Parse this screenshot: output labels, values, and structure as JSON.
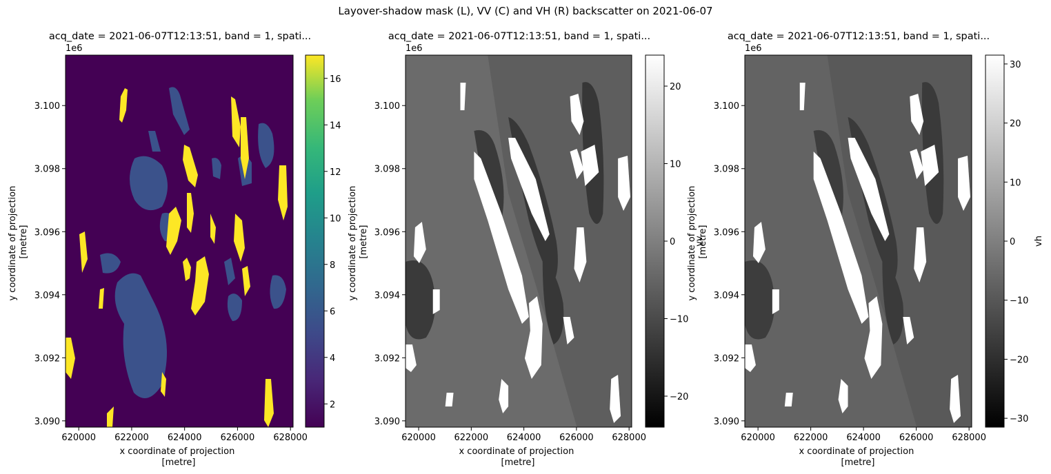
{
  "suptitle": "Layover-shadow mask (L), VV (C) and VH (R) backscatter on 2021-06-07",
  "colors": {
    "viridis_low": "#440154",
    "viridis_mid": "#3b528b",
    "viridis_high": "#fde725",
    "gray_low": "#000000",
    "gray_high": "#ffffff",
    "nodata": "#ffffff"
  },
  "chart_data": [
    {
      "type": "heatmap",
      "title": "acq_date = 2021-06-07T12:13:51, band = 1, spati...",
      "xlabel": "x coordinate of projection\n[metre]",
      "ylabel": "y coordinate of projection\n[metre]",
      "y_offset_label": "1e6",
      "xlim": [
        619500,
        628100
      ],
      "ylim": [
        3.0898,
        3.1016
      ],
      "xticks": [
        620000,
        622000,
        624000,
        626000,
        628000
      ],
      "xtick_labels": [
        "620000",
        "622000",
        "624000",
        "626000",
        "628000"
      ],
      "yticks": [
        3.09,
        3.092,
        3.094,
        3.096,
        3.098,
        3.1
      ],
      "ytick_labels": [
        "3.090",
        "3.092",
        "3.094",
        "3.096",
        "3.098",
        "3.100"
      ],
      "colormap": "viridis",
      "clim": [
        1,
        17
      ],
      "colorbar_ticks": [
        2,
        4,
        6,
        8,
        10,
        12,
        14,
        16
      ],
      "colorbar_tick_labels": [
        "2",
        "4",
        "6",
        "8",
        "10",
        "12",
        "14",
        "16"
      ],
      "colorbar_label": "",
      "mask_classes": [
        1,
        5,
        17
      ]
    },
    {
      "type": "heatmap",
      "title": "acq_date = 2021-06-07T12:13:51, band = 1, spati...",
      "xlabel": "x coordinate of projection\n[metre]",
      "ylabel": "y coordinate of projection\n[metre]",
      "y_offset_label": "1e6",
      "xlim": [
        619500,
        628100
      ],
      "ylim": [
        3.0898,
        3.1016
      ],
      "xticks": [
        620000,
        622000,
        624000,
        626000,
        628000
      ],
      "xtick_labels": [
        "620000",
        "622000",
        "624000",
        "626000",
        "628000"
      ],
      "yticks": [
        3.09,
        3.092,
        3.094,
        3.096,
        3.098,
        3.1
      ],
      "ytick_labels": [
        "3.090",
        "3.092",
        "3.094",
        "3.096",
        "3.098",
        "3.100"
      ],
      "colormap": "gray",
      "clim": [
        -24,
        24
      ],
      "colorbar_ticks": [
        -20,
        -10,
        0,
        10,
        20
      ],
      "colorbar_tick_labels": [
        "−20",
        "−10",
        "0",
        "10",
        "20"
      ],
      "colorbar_label": "vv"
    },
    {
      "type": "heatmap",
      "title": "acq_date = 2021-06-07T12:13:51, band = 1, spati...",
      "xlabel": "x coordinate of projection\n[metre]",
      "ylabel": "y coordinate of projection\n[metre]",
      "y_offset_label": "1e6",
      "xlim": [
        619500,
        628100
      ],
      "ylim": [
        3.0898,
        3.1016
      ],
      "xticks": [
        620000,
        622000,
        624000,
        626000,
        628000
      ],
      "xtick_labels": [
        "620000",
        "622000",
        "624000",
        "626000",
        "628000"
      ],
      "yticks": [
        3.09,
        3.092,
        3.094,
        3.096,
        3.098,
        3.1
      ],
      "ytick_labels": [
        "3.090",
        "3.092",
        "3.094",
        "3.096",
        "3.098",
        "3.100"
      ],
      "colormap": "gray",
      "clim": [
        -31.5,
        31.5
      ],
      "colorbar_ticks": [
        -30,
        -20,
        -10,
        0,
        10,
        20,
        30
      ],
      "colorbar_tick_labels": [
        "−30",
        "−20",
        "−10",
        "0",
        "10",
        "20",
        "30"
      ],
      "colorbar_label": "vh"
    }
  ]
}
